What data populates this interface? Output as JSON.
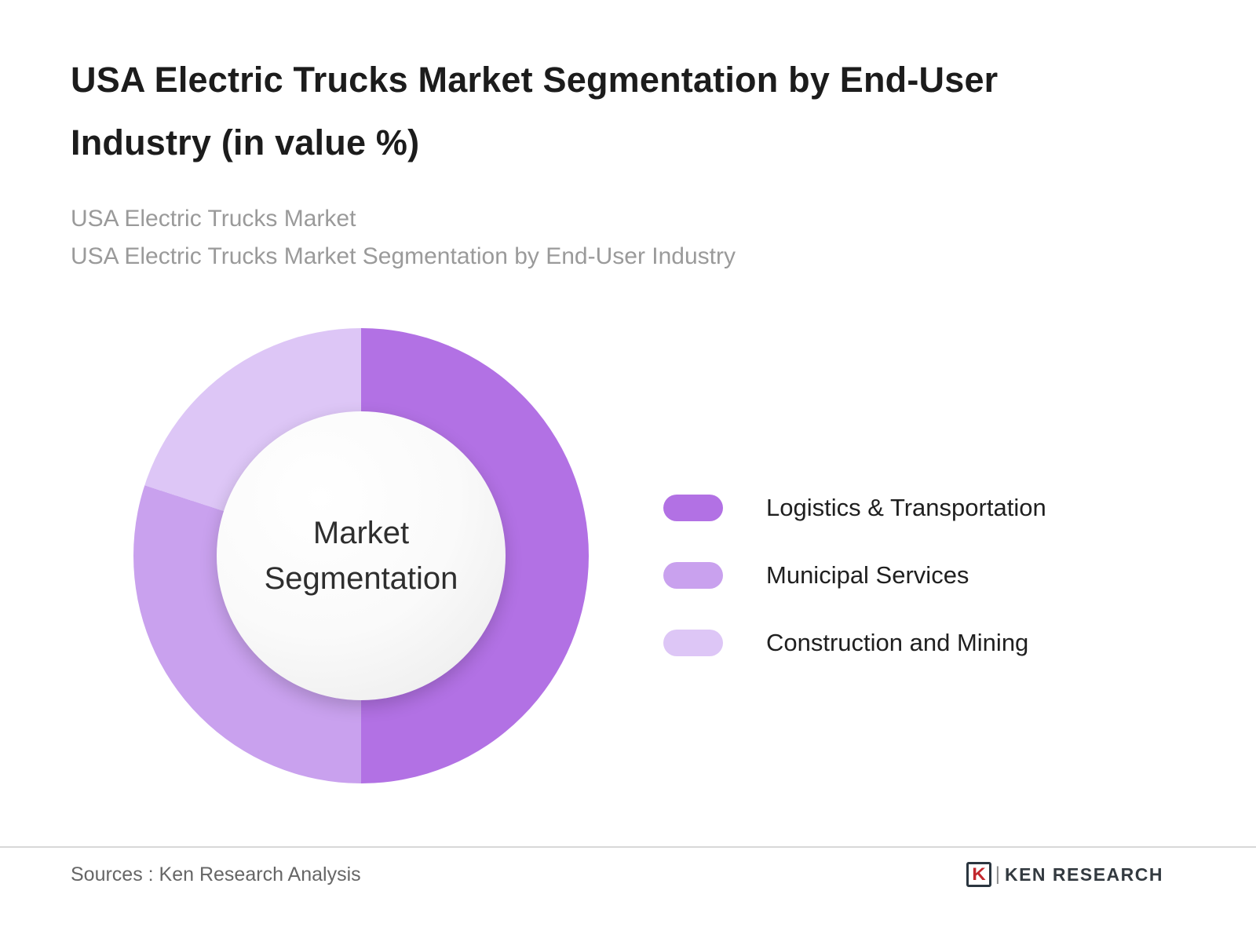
{
  "header": {
    "title": "USA Electric Trucks Market Segmentation by End-User Industry (in value %)",
    "subtitle_line1": "USA Electric Trucks Market",
    "subtitle_line2": "USA Electric Trucks Market Segmentation by End-User Industry"
  },
  "chart_data": {
    "type": "pie",
    "variant": "donut",
    "title": "USA Electric Trucks Market Segmentation by End-User Industry (in value %)",
    "center_label": "Market Segmentation",
    "start_angle_deg": 0,
    "direction": "clockwise",
    "legend_position": "right",
    "segments": [
      {
        "label": "Logistics & Transportation",
        "value": 50,
        "color": "#b271e4"
      },
      {
        "label": "Municipal Services",
        "value": 30,
        "color": "#c9a1ee"
      },
      {
        "label": "Construction and Mining",
        "value": 20,
        "color": "#ddc6f6"
      }
    ]
  },
  "footer": {
    "source": "Sources : Ken Research Analysis",
    "logo_letter": "K",
    "logo_text": "KEN RESEARCH"
  }
}
